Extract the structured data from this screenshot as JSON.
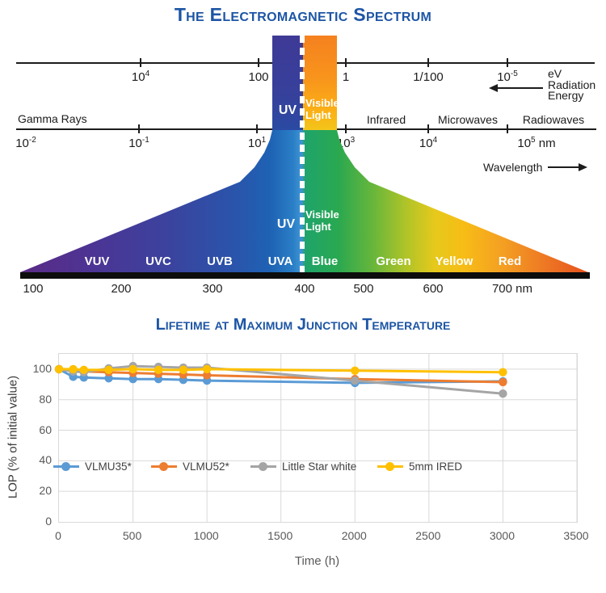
{
  "em_diagram": {
    "title": "The Electromagnetic Spectrum",
    "energy_scale": {
      "ticks": [
        {
          "base": "10",
          "sup": "4"
        },
        {
          "base": "100",
          "sup": ""
        },
        {
          "base": "1",
          "sup": ""
        },
        {
          "base": "1/100",
          "sup": ""
        },
        {
          "base": "10",
          "sup": "-5"
        }
      ],
      "legend_lines": [
        "eV",
        "Radiation",
        "Energy"
      ]
    },
    "wavelength_scale": {
      "left_label": "Gamma Rays",
      "region_labels": [
        "Infrared",
        "Microwaves",
        "Radiowaves"
      ],
      "ticks": [
        {
          "base": "10",
          "sup": "-2",
          "unit": ""
        },
        {
          "base": "10",
          "sup": "-1",
          "unit": ""
        },
        {
          "base": "10",
          "sup": "1",
          "unit": ""
        },
        {
          "base": "10",
          "sup": "3",
          "unit": ""
        },
        {
          "base": "10",
          "sup": "4",
          "unit": ""
        },
        {
          "base": "10",
          "sup": "5",
          "unit": " nm"
        }
      ],
      "arrow_label": "Wavelength"
    },
    "spectrum": {
      "uv_top": "UV",
      "uv_bottom": "UV",
      "visible_top": [
        "Visible",
        "Light"
      ],
      "visible_bottom": [
        "Visible",
        "Light"
      ],
      "sub_bands": [
        "VUV",
        "UVC",
        "UVB",
        "UVA",
        "Blue",
        "Green",
        "Yellow",
        "Red"
      ],
      "nm_labels": [
        "100",
        "200",
        "300",
        "400",
        "500",
        "600",
        "700 nm"
      ]
    }
  },
  "colors": {
    "title_blue": "#1d55a5",
    "series_blue": "#5B9BD5",
    "series_orange": "#ED7D31",
    "series_gray": "#A5A5A5",
    "series_yellow": "#FFC000"
  },
  "chart_data": {
    "type": "line",
    "title": "Lifetime at Maximum Junction Temperature",
    "xlabel": "Time (h)",
    "ylabel": "LOP (% of initial value)",
    "xlim": [
      0,
      3500
    ],
    "ylim": [
      0,
      110
    ],
    "x_ticks": [
      0,
      500,
      1000,
      1500,
      2000,
      2500,
      3000,
      3500
    ],
    "y_ticks": [
      0,
      20,
      40,
      60,
      80,
      100
    ],
    "grid": true,
    "legend_position": "inside-middle-left",
    "x": [
      0,
      96,
      168,
      336,
      500,
      672,
      840,
      1000,
      2000,
      3000
    ],
    "series": [
      {
        "name": "VLMU35*",
        "color": "#5B9BD5",
        "values": [
          100,
          95,
          94.5,
          94,
          93.5,
          93.5,
          93,
          92.5,
          91,
          92
        ]
      },
      {
        "name": "VLMU52*",
        "color": "#ED7D31",
        "values": [
          100,
          99,
          98.5,
          98,
          97.5,
          97,
          96.5,
          96,
          93.5,
          91.5
        ]
      },
      {
        "name": "Little Star white",
        "color": "#A5A5A5",
        "values": [
          100,
          98.5,
          98,
          100.5,
          102,
          101.5,
          101,
          101,
          92.5,
          84
        ]
      },
      {
        "name": "5mm IRED",
        "color": "#FFC000",
        "values": [
          100,
          100,
          99.5,
          99.5,
          100,
          99.5,
          99.5,
          100,
          99,
          98
        ]
      }
    ]
  }
}
